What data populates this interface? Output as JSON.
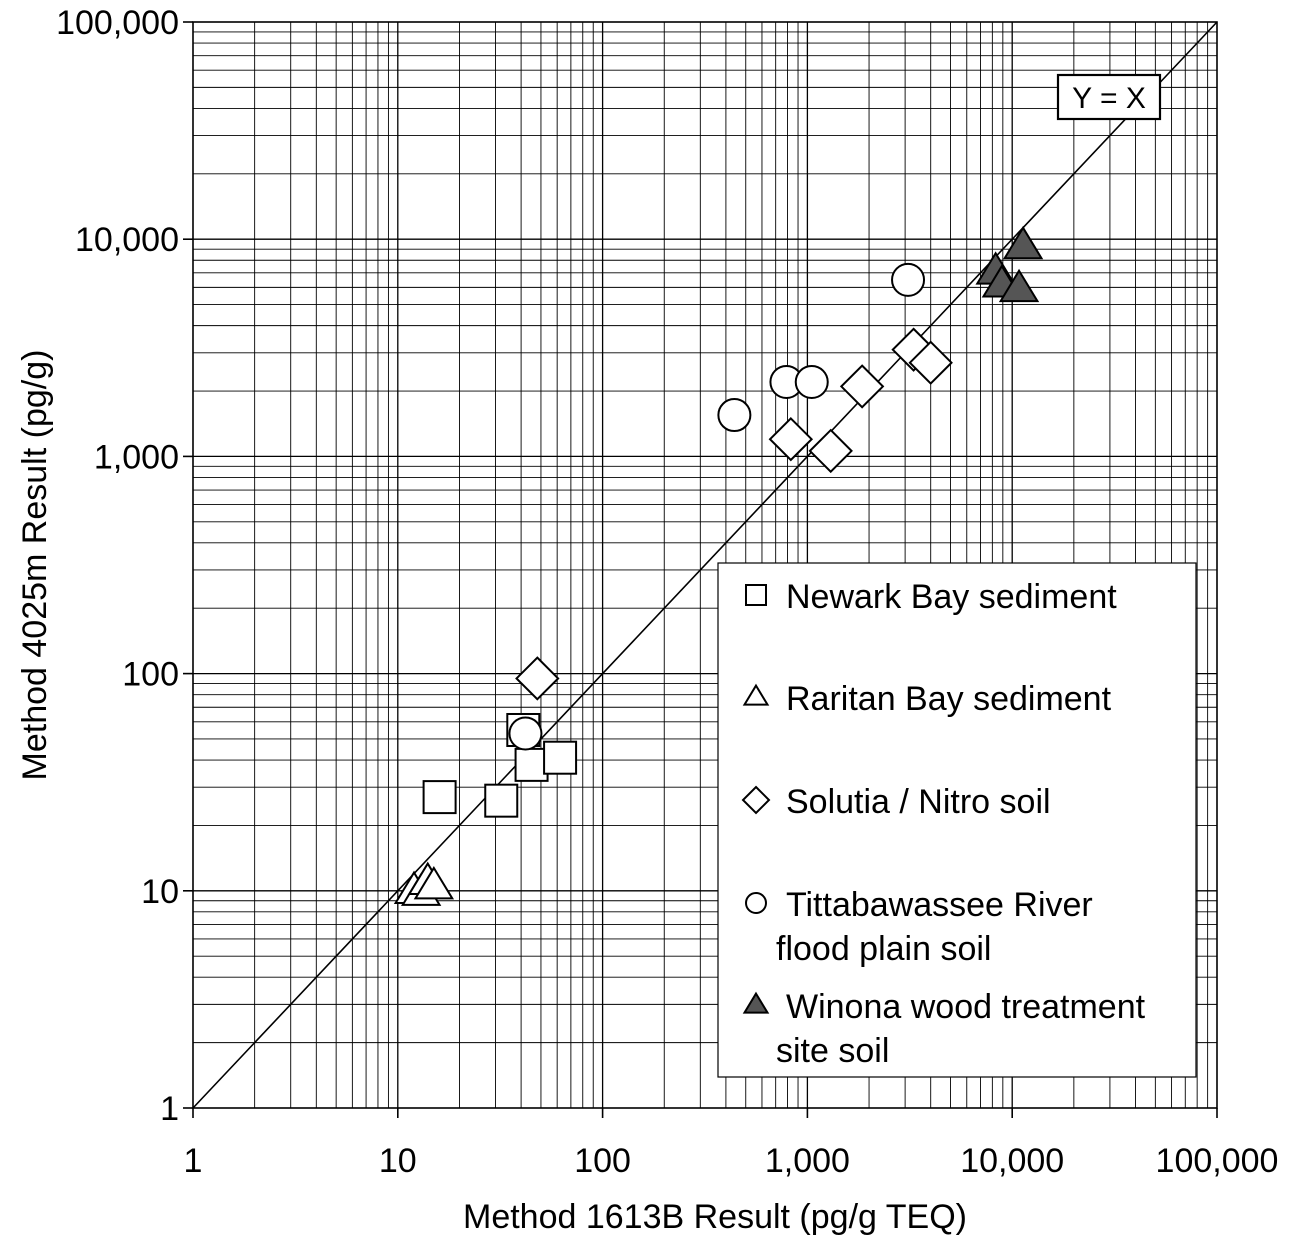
{
  "chart_data": {
    "type": "scatter",
    "xlabel": "Method 1613B Result (pg/g TEQ)",
    "ylabel": "Method 4025m Result (pg/g)",
    "x_scale": "log",
    "y_scale": "log",
    "xlim": [
      1,
      100000
    ],
    "ylim": [
      1,
      100000
    ],
    "grid": true,
    "x_ticks": [
      {
        "value": 1,
        "label": "1"
      },
      {
        "value": 10,
        "label": "10"
      },
      {
        "value": 100,
        "label": "100"
      },
      {
        "value": 1000,
        "label": "1,000"
      },
      {
        "value": 10000,
        "label": "10,000"
      },
      {
        "value": 100000,
        "label": "100,000"
      }
    ],
    "y_ticks": [
      {
        "value": 1,
        "label": "1"
      },
      {
        "value": 10,
        "label": "10"
      },
      {
        "value": 100,
        "label": "100"
      },
      {
        "value": 1000,
        "label": "1,000"
      },
      {
        "value": 10000,
        "label": "10,000"
      },
      {
        "value": 100000,
        "label": "100,000"
      }
    ],
    "reference_line": {
      "label": "Y = X",
      "x": [
        1,
        100000
      ],
      "y": [
        1,
        100000
      ]
    },
    "legend_position": "bottom-right",
    "series": [
      {
        "name": "Newark Bay sediment",
        "marker": "square",
        "fill": "#ffffff",
        "points": [
          [
            16,
            27
          ],
          [
            32,
            26
          ],
          [
            41,
            55
          ],
          [
            45,
            38
          ],
          [
            62,
            41
          ]
        ]
      },
      {
        "name": "Raritan Bay sediment",
        "marker": "triangle",
        "fill": "#ffffff",
        "points": [
          [
            12,
            10
          ],
          [
            13,
            9.8
          ],
          [
            14,
            11
          ],
          [
            15,
            10.5
          ]
        ]
      },
      {
        "name": "Solutia / Nitro soil",
        "marker": "diamond",
        "fill": "#ffffff",
        "points": [
          [
            48,
            95
          ],
          [
            830,
            1200
          ],
          [
            1300,
            1060
          ],
          [
            1850,
            2100
          ],
          [
            3300,
            3100
          ],
          [
            4000,
            2700
          ]
        ]
      },
      {
        "name": "Tittabawassee River flood plain soil",
        "name_lines": [
          "Tittabawassee River",
          "flood plain soil"
        ],
        "marker": "circle",
        "fill": "#ffffff",
        "points": [
          [
            42,
            53
          ],
          [
            440,
            1550
          ],
          [
            790,
            2200
          ],
          [
            1050,
            2200
          ],
          [
            3100,
            6500
          ]
        ]
      },
      {
        "name": "Winona wood treatment site soil",
        "name_lines": [
          "Winona wood treatment",
          "site soil"
        ],
        "marker": "triangle",
        "fill": "#555555",
        "points": [
          [
            8300,
            7100
          ],
          [
            8900,
            6200
          ],
          [
            10800,
            5900
          ],
          [
            11300,
            9300
          ]
        ]
      }
    ]
  }
}
